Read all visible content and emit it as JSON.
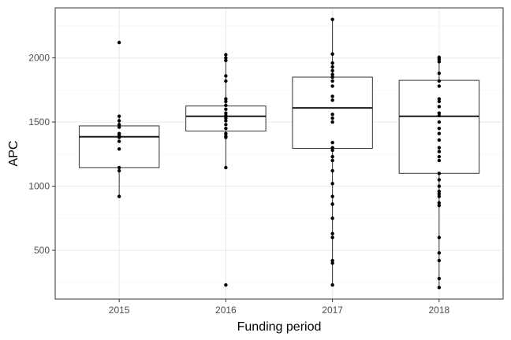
{
  "chart_data": {
    "type": "boxplot",
    "xlabel": "Funding period",
    "ylabel": "APC",
    "categories": [
      "2015",
      "2016",
      "2017",
      "2018"
    ],
    "ylim": [
      120,
      2390
    ],
    "yticks": [
      500,
      1000,
      1500,
      2000
    ],
    "grid": true,
    "boxes": [
      {
        "category": "2015",
        "q1": 1145,
        "median": 1385,
        "q3": 1470,
        "whisker_low": 920,
        "whisker_high": 1545
      },
      {
        "category": "2016",
        "q1": 1430,
        "median": 1545,
        "q3": 1625,
        "whisker_low": 1145,
        "whisker_high": 2025
      },
      {
        "category": "2017",
        "q1": 1295,
        "median": 1610,
        "q3": 1850,
        "whisker_low": 230,
        "whisker_high": 2300
      },
      {
        "category": "2018",
        "q1": 1100,
        "median": 1545,
        "q3": 1825,
        "whisker_low": 210,
        "whisker_high": 2005
      }
    ],
    "points": [
      {
        "category": "2015",
        "values": [
          2120,
          1545,
          1510,
          1480,
          1460,
          1410,
          1395,
          1380,
          1350,
          1290,
          1145,
          1120,
          920
        ]
      },
      {
        "category": "2016",
        "values": [
          2025,
          2000,
          1980,
          1860,
          1820,
          1680,
          1660,
          1630,
          1600,
          1570,
          1550,
          1530,
          1510,
          1480,
          1450,
          1410,
          1390,
          1380,
          1145,
          230
        ]
      },
      {
        "category": "2017",
        "values": [
          2300,
          2030,
          1960,
          1930,
          1900,
          1870,
          1850,
          1820,
          1780,
          1700,
          1670,
          1560,
          1530,
          1500,
          1340,
          1300,
          1280,
          1230,
          1200,
          1120,
          1020,
          920,
          860,
          750,
          630,
          600,
          420,
          400,
          230
        ]
      },
      {
        "category": "2018",
        "values": [
          2005,
          1990,
          1970,
          1880,
          1820,
          1780,
          1680,
          1660,
          1620,
          1570,
          1550,
          1500,
          1450,
          1410,
          1360,
          1300,
          1270,
          1230,
          1200,
          1100,
          1050,
          1000,
          960,
          940,
          920,
          870,
          850,
          600,
          480,
          420,
          280,
          210
        ]
      }
    ]
  },
  "colors": {
    "point": "#000000",
    "box_stroke": "#333333",
    "median": "#1a1a1a",
    "whisker": "#333333",
    "grid_major": "#ebebeb",
    "grid_minor": "#f5f5f5",
    "panel_border": "#333333"
  }
}
